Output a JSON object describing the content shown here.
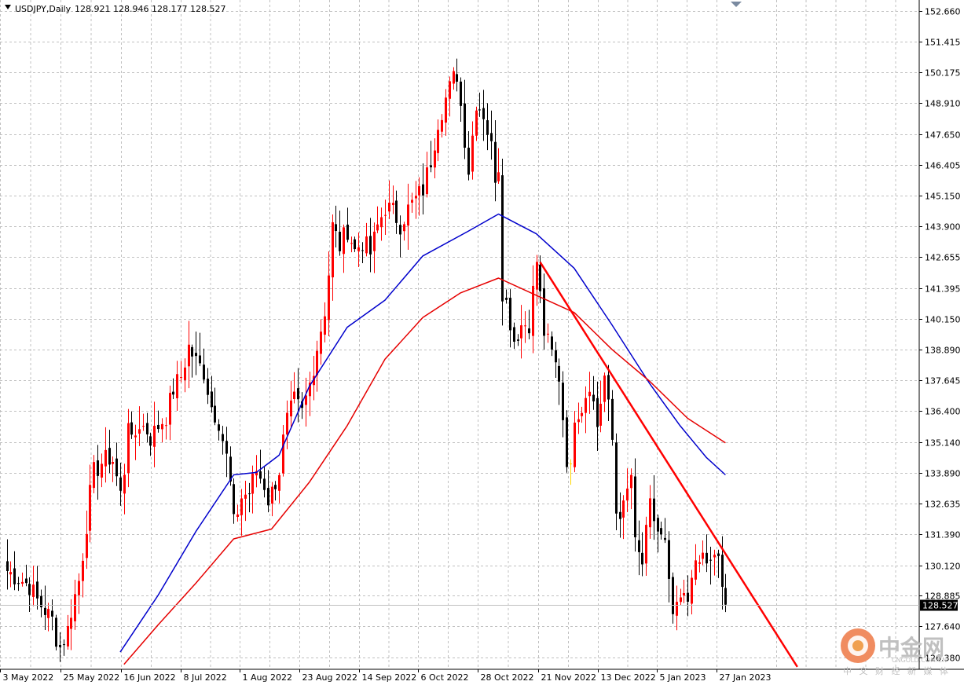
{
  "header": {
    "symbol_label": "USDJPY,Daily",
    "ohlc": "128.921 128.946 128.177 128.527"
  },
  "price_label": "128.527",
  "watermark": {
    "brand": "中金网",
    "url": "CNGOLD.COM.CN",
    "tagline": "中 文 财 经 新 媒 体"
  },
  "colors": {
    "background": "#ffffff",
    "grid": "#c0c0c0",
    "bull_candle": "#ff0000",
    "bear_candle": "#000000",
    "highlight_candle": "#ffd700",
    "ma_fast": "#0000cc",
    "ma_slow": "#e60000",
    "trendline": "#ff0000"
  },
  "chart_data": {
    "type": "candlestick",
    "title": "USDJPY,Daily",
    "ylim": [
      125.9,
      153.1
    ],
    "y_ticks": [
      "152.660",
      "151.415",
      "150.175",
      "148.910",
      "147.650",
      "146.405",
      "145.150",
      "143.900",
      "142.655",
      "141.395",
      "140.150",
      "138.890",
      "137.645",
      "136.400",
      "135.140",
      "133.890",
      "132.635",
      "131.390",
      "130.120",
      "128.885",
      "127.640",
      "126.380"
    ],
    "x_ticks": [
      "3 May 2022",
      "25 May 2022",
      "16 Jun 2022",
      "8 Jul 2022",
      "1 Aug 2022",
      "23 Aug 2022",
      "14 Sep 2022",
      "6 Oct 2022",
      "28 Oct 2022",
      "21 Nov 2022",
      "13 Dec 2022",
      "5 Jan 2023",
      "27 Jan 2023"
    ],
    "grid": true,
    "last_close": 128.527,
    "anchors": [
      [
        0,
        129.9
      ],
      [
        6,
        129.3
      ],
      [
        8,
        128.7
      ],
      [
        10,
        128.3
      ],
      [
        12,
        127.9
      ],
      [
        13,
        127.2
      ],
      [
        14,
        126.8
      ],
      [
        16,
        127.5
      ],
      [
        17,
        128.3
      ],
      [
        19,
        129.5
      ],
      [
        20,
        130.6
      ],
      [
        21,
        131.8
      ],
      [
        22,
        133.0
      ],
      [
        23,
        133.9
      ],
      [
        25,
        134.3
      ],
      [
        27,
        134.5
      ],
      [
        28,
        134.4
      ],
      [
        30,
        133.0
      ],
      [
        31,
        134.0
      ],
      [
        32,
        136.2
      ],
      [
        33,
        135.0
      ],
      [
        35,
        135.9
      ],
      [
        37,
        135.6
      ],
      [
        38,
        135.3
      ],
      [
        40,
        135.8
      ],
      [
        42,
        136.2
      ],
      [
        44,
        137.3
      ],
      [
        46,
        137.8
      ],
      [
        48,
        139.0
      ],
      [
        50,
        138.4
      ],
      [
        52,
        138.0
      ],
      [
        54,
        136.6
      ],
      [
        56,
        136.0
      ],
      [
        58,
        134.5
      ],
      [
        59,
        133.4
      ],
      [
        60,
        131.8
      ],
      [
        62,
        132.9
      ],
      [
        64,
        133.1
      ],
      [
        66,
        134.0
      ],
      [
        68,
        133.4
      ],
      [
        69,
        132.8
      ],
      [
        70,
        133.1
      ],
      [
        72,
        134.0
      ],
      [
        73,
        135.2
      ],
      [
        74,
        136.0
      ],
      [
        76,
        136.8
      ],
      [
        78,
        136.3
      ],
      [
        80,
        137.5
      ],
      [
        82,
        139.0
      ],
      [
        84,
        140.5
      ],
      [
        85,
        142.0
      ],
      [
        86,
        143.9
      ],
      [
        88,
        143.1
      ],
      [
        90,
        143.8
      ],
      [
        92,
        142.9
      ],
      [
        94,
        143.3
      ],
      [
        96,
        142.8
      ],
      [
        98,
        143.9
      ],
      [
        100,
        144.7
      ],
      [
        102,
        144.5
      ],
      [
        104,
        144.0
      ],
      [
        106,
        144.6
      ],
      [
        108,
        145.0
      ],
      [
        110,
        145.4
      ],
      [
        112,
        146.6
      ],
      [
        114,
        148.2
      ],
      [
        116,
        149.1
      ],
      [
        118,
        149.9
      ],
      [
        119,
        150.1
      ],
      [
        120,
        148.8
      ],
      [
        122,
        146.2
      ],
      [
        124,
        149.0
      ],
      [
        126,
        148.5
      ],
      [
        128,
        147.1
      ],
      [
        129,
        146.0
      ],
      [
        130,
        146.4
      ],
      [
        131,
        141.3
      ],
      [
        132,
        140.8
      ],
      [
        134,
        139.3
      ],
      [
        136,
        139.9
      ],
      [
        138,
        140.0
      ],
      [
        140,
        142.5
      ],
      [
        142,
        139.6
      ],
      [
        144,
        138.7
      ],
      [
        146,
        137.8
      ],
      [
        148,
        134.5
      ],
      [
        149,
        133.9
      ],
      [
        150,
        136.3
      ],
      [
        152,
        136.6
      ],
      [
        154,
        137.6
      ],
      [
        156,
        135.8
      ],
      [
        158,
        137.8
      ],
      [
        160,
        135.2
      ],
      [
        161,
        132.3
      ],
      [
        163,
        132.4
      ],
      [
        165,
        133.8
      ],
      [
        166,
        130.9
      ],
      [
        167,
        130.5
      ],
      [
        168,
        130.2
      ],
      [
        170,
        132.5
      ],
      [
        172,
        131.5
      ],
      [
        174,
        130.9
      ],
      [
        175,
        129.2
      ],
      [
        176,
        128.1
      ],
      [
        177,
        128.2
      ],
      [
        178,
        128.7
      ],
      [
        180,
        128.7
      ],
      [
        181,
        130.0
      ],
      [
        182,
        129.9
      ],
      [
        184,
        130.5
      ],
      [
        186,
        130.1
      ],
      [
        188,
        130.5
      ],
      [
        189,
        129.3
      ],
      [
        190,
        128.5
      ]
    ],
    "highlight_candle_index": 149,
    "series": [
      {
        "name": "",
        "kind": "moving-average",
        "points": [
          [
            30,
            126.6
          ],
          [
            40,
            128.9
          ],
          [
            50,
            131.5
          ],
          [
            60,
            133.8
          ],
          [
            66,
            133.9
          ],
          [
            72,
            134.6
          ],
          [
            80,
            137.4
          ],
          [
            90,
            139.8
          ],
          [
            100,
            140.9
          ],
          [
            110,
            142.7
          ],
          [
            122,
            143.7
          ],
          [
            130,
            144.4
          ],
          [
            140,
            143.6
          ],
          [
            150,
            142.2
          ],
          [
            160,
            139.9
          ],
          [
            170,
            137.5
          ],
          [
            178,
            135.8
          ],
          [
            185,
            134.5
          ],
          [
            190,
            133.8
          ]
        ]
      },
      {
        "name": "",
        "kind": "moving-average",
        "points": [
          [
            31,
            126.1
          ],
          [
            40,
            127.7
          ],
          [
            50,
            129.4
          ],
          [
            60,
            131.2
          ],
          [
            70,
            131.6
          ],
          [
            80,
            133.5
          ],
          [
            90,
            135.8
          ],
          [
            100,
            138.5
          ],
          [
            110,
            140.2
          ],
          [
            120,
            141.2
          ],
          [
            130,
            141.8
          ],
          [
            140,
            141.1
          ],
          [
            150,
            140.4
          ],
          [
            160,
            138.9
          ],
          [
            170,
            137.6
          ],
          [
            180,
            136.1
          ],
          [
            190,
            135.1
          ]
        ]
      }
    ],
    "trendline": {
      "from": [
        141,
        142.45
      ],
      "to": [
        209,
        126.0
      ]
    }
  }
}
